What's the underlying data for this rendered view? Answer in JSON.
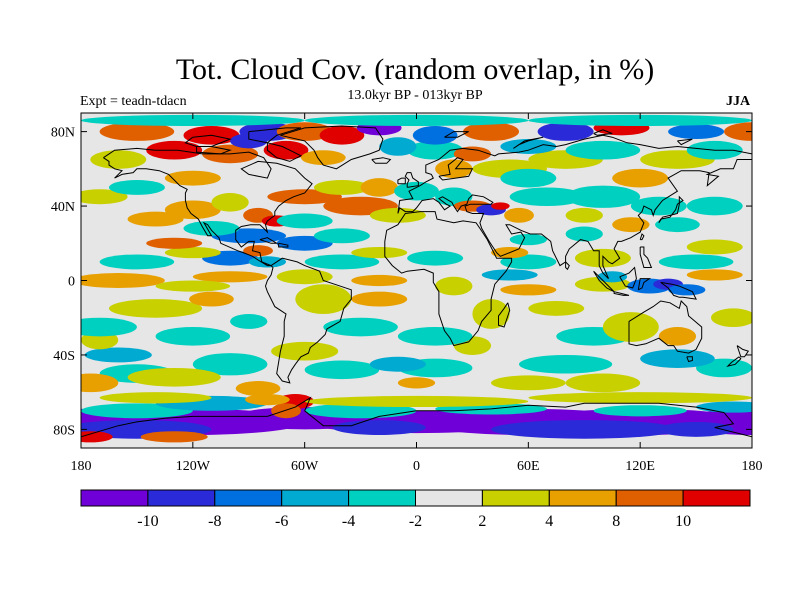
{
  "header": {
    "title": "Tot. Cloud Cov. (random overlap, in %)",
    "subtitle": "13.0kyr BP - 013kyr BP",
    "experiment": "Expt = teadn-tdacn",
    "season": "JJA"
  },
  "map": {
    "projection": "cylindrical-equidistant",
    "lon_range": [
      -180,
      180
    ],
    "lat_range": [
      -90,
      90
    ],
    "lat_ticks": [
      {
        "value": 80,
        "label": "80N"
      },
      {
        "value": 40,
        "label": "40N"
      },
      {
        "value": 0,
        "label": "0"
      },
      {
        "value": -40,
        "label": "40S"
      },
      {
        "value": -80,
        "label": "80S"
      }
    ],
    "lon_ticks": [
      {
        "value": -180,
        "label": "180"
      },
      {
        "value": -120,
        "label": "120W"
      },
      {
        "value": -60,
        "label": "60W"
      },
      {
        "value": 0,
        "label": "0"
      },
      {
        "value": 60,
        "label": "60E"
      },
      {
        "value": 120,
        "label": "120E"
      },
      {
        "value": 180,
        "label": "180"
      }
    ],
    "background_color": "#e6e6e6",
    "coastline_color": "#000000"
  },
  "colorbar": {
    "colors": [
      "#7000d8",
      "#2a2ad8",
      "#0070e0",
      "#00aad0",
      "#00d0c0",
      "#e6e6e6",
      "#c8d000",
      "#e8a000",
      "#e06000",
      "#e00000"
    ],
    "labels": [
      {
        "boundary": 1,
        "text": "-10"
      },
      {
        "boundary": 2,
        "text": "-8"
      },
      {
        "boundary": 3,
        "text": "-6"
      },
      {
        "boundary": 4,
        "text": "-4"
      },
      {
        "boundary": 5,
        "text": "-2"
      },
      {
        "boundary": 6,
        "text": "2"
      },
      {
        "boundary": 7,
        "text": "4"
      },
      {
        "boundary": 8,
        "text": "8"
      },
      {
        "boundary": 9,
        "text": "10"
      }
    ]
  }
}
